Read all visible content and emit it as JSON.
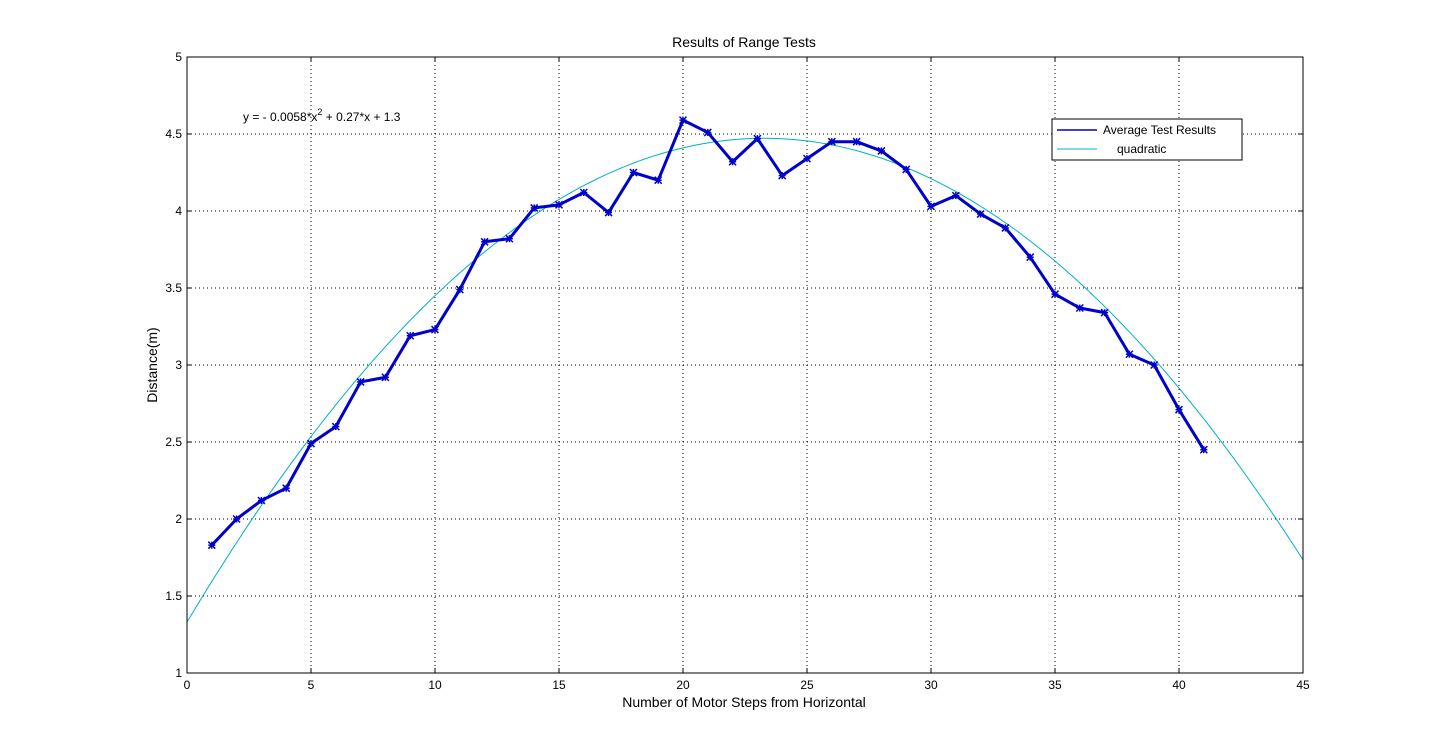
{
  "chart_data": {
    "type": "line",
    "title": "Results of Range Tests",
    "xlabel": "Number of Motor Steps from Horizontal",
    "ylabel": "Distance(m)",
    "xlim": [
      0,
      45
    ],
    "ylim": [
      1,
      5
    ],
    "xticks": [
      0,
      5,
      10,
      15,
      20,
      25,
      30,
      35,
      40,
      45
    ],
    "yticks": [
      1,
      1.5,
      2,
      2.5,
      3,
      3.5,
      4,
      4.5,
      5
    ],
    "grid": true,
    "legend_position": "top-right",
    "annotation": {
      "prefix": "y = - 0.0058*x",
      "sup": "2",
      "suffix": " + 0.27*x + 1.3"
    },
    "fit": {
      "a": -0.0058,
      "b": 0.27,
      "c": 1.33
    },
    "series": [
      {
        "name": "Average Test Results",
        "color": "#0000cc",
        "marker": "asterisk",
        "x": [
          1,
          2,
          3,
          4,
          5,
          6,
          7,
          8,
          9,
          10,
          11,
          12,
          13,
          14,
          15,
          16,
          17,
          18,
          19,
          20,
          21,
          22,
          23,
          24,
          25,
          26,
          27,
          28,
          29,
          30,
          31,
          32,
          33,
          34,
          35,
          36,
          37,
          38,
          39,
          40,
          41
        ],
        "y": [
          1.83,
          2.0,
          2.12,
          2.2,
          2.49,
          2.6,
          2.89,
          2.92,
          3.19,
          3.23,
          3.49,
          3.8,
          3.82,
          4.02,
          4.04,
          4.12,
          3.99,
          4.25,
          4.2,
          4.59,
          4.51,
          4.32,
          4.47,
          4.23,
          4.34,
          4.45,
          4.45,
          4.39,
          4.27,
          4.03,
          4.1,
          3.98,
          3.89,
          3.7,
          3.46,
          3.37,
          3.34,
          3.07,
          3.0,
          2.71,
          2.45
        ]
      },
      {
        "name": "quadratic",
        "color": "#00b0c0",
        "marker": "none"
      }
    ]
  }
}
